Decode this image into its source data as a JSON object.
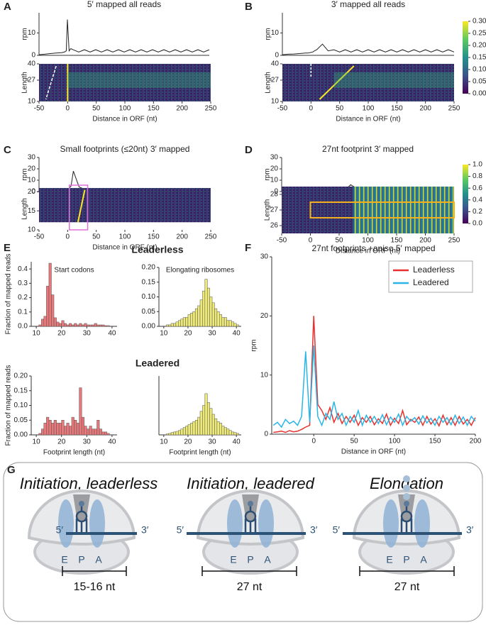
{
  "panel_labels": [
    "A",
    "B",
    "C",
    "D",
    "E",
    "F",
    "G"
  ],
  "section_titles": [
    "Leaderless",
    "Leadered"
  ],
  "chart_data": [
    {
      "type": "line",
      "title": "5′ mapped all reads",
      "ylabel": "rpm",
      "color": "#222222",
      "x": [
        -50,
        -40,
        -30,
        -20,
        -10,
        -5,
        -2,
        0,
        3,
        6,
        10,
        20,
        30,
        40,
        50,
        60,
        70,
        80,
        90,
        100,
        110,
        120,
        130,
        140,
        150,
        160,
        170,
        180,
        190,
        200,
        210,
        220,
        230,
        240,
        250
      ],
      "values": [
        0.3,
        0.5,
        0.8,
        1,
        1.2,
        1.5,
        2,
        16,
        2,
        3,
        2.5,
        1.5,
        2.5,
        1.5,
        2.5,
        1.5,
        2.5,
        1.5,
        2.5,
        1.5,
        2.5,
        1.5,
        2.5,
        1.5,
        2.5,
        1.5,
        2.5,
        1.5,
        2.5,
        1.5,
        2.5,
        1.5,
        2.5,
        1.5,
        2.5
      ],
      "xlim": [
        -50,
        250
      ],
      "ylim": [
        0,
        19
      ],
      "yticks": [
        0,
        10
      ]
    },
    {
      "type": "heatmap",
      "ylabel": "Length",
      "xlabel": "Distance in ORF (nt)",
      "xlim": [
        -50,
        250
      ],
      "xticks": [
        -50,
        0,
        50,
        100,
        150,
        200,
        250
      ],
      "ylim": [
        10,
        40
      ],
      "yticks": [
        10,
        27,
        40
      ]
    },
    {
      "type": "line",
      "title": "3′ mapped all reads",
      "ylabel": "rpm",
      "color": "#222222",
      "x": [
        -50,
        -40,
        -30,
        -20,
        -10,
        -5,
        -2,
        0,
        3,
        6,
        10,
        20,
        30,
        40,
        50,
        60,
        70,
        80,
        90,
        100,
        110,
        120,
        130,
        140,
        150,
        160,
        170,
        180,
        190,
        200,
        210,
        220,
        230,
        240,
        250
      ],
      "values": [
        0.3,
        0.5,
        0.6,
        0.8,
        1,
        1,
        1.2,
        1.3,
        1.5,
        2,
        2.5,
        5,
        2,
        2.5,
        1.5,
        2.5,
        1.5,
        2.5,
        1.5,
        2.5,
        1.5,
        2.5,
        1.5,
        2.5,
        1.5,
        2.5,
        1.5,
        2.5,
        1.5,
        2.5,
        1.5,
        2.5,
        1.5,
        2.5,
        1.5
      ],
      "xlim": [
        -50,
        250
      ],
      "ylim": [
        0,
        19
      ],
      "yticks": [
        0,
        10
      ]
    },
    {
      "type": "heatmap",
      "ylabel": "Length",
      "xlabel": "Distance in ORF (nt)",
      "xlim": [
        -50,
        250
      ],
      "xticks": [
        -50,
        0,
        50,
        100,
        150,
        200,
        250
      ],
      "ylim": [
        10,
        40
      ],
      "yticks": [
        10,
        27,
        40
      ]
    },
    {
      "type": "colorbar",
      "colors": [
        "#440154",
        "#3b528b",
        "#21918c",
        "#5ec962",
        "#fde725"
      ],
      "ylim": [
        0,
        0.3
      ],
      "yticks": [
        {
          "value": 0,
          "label": "0.00"
        },
        {
          "value": 0.05,
          "label": "0.05"
        },
        {
          "value": 0.1,
          "label": "0.10"
        },
        {
          "value": 0.15,
          "label": "0.15"
        },
        {
          "value": 0.2,
          "label": "0.20"
        },
        {
          "value": 0.25,
          "label": "0.25"
        },
        {
          "value": 0.3,
          "label": "0.30"
        }
      ]
    },
    {
      "type": "line",
      "title": "Small footprints (≤20nt) 3′ mapped",
      "ylabel": "rpm",
      "color": "#222222",
      "x": [
        -50,
        -40,
        -30,
        -20,
        -10,
        -5,
        -2,
        0,
        3,
        6,
        10,
        20,
        30,
        40,
        50,
        60,
        70,
        80,
        90,
        100,
        110,
        120,
        130,
        140,
        150,
        160,
        170,
        180,
        190,
        200,
        210,
        220,
        230,
        240,
        250
      ],
      "values": [
        1,
        1,
        1,
        1.2,
        1.5,
        1.5,
        1.5,
        2,
        3,
        5,
        18,
        4,
        2,
        1.5,
        1,
        1.5,
        1,
        1.5,
        1,
        1.5,
        1,
        1.5,
        1,
        1.5,
        1,
        1.5,
        1,
        1.5,
        1,
        1.5,
        1,
        1.5,
        1,
        1.5,
        1
      ],
      "xlim": [
        -50,
        250
      ],
      "ylim": [
        0,
        30
      ],
      "yticks": [
        0,
        10,
        20,
        30
      ]
    },
    {
      "type": "heatmap",
      "ylabel": "Length",
      "xlabel": "Distance in ORF (nt)",
      "xlim": [
        -50,
        250
      ],
      "xticks": [
        -50,
        0,
        50,
        100,
        150,
        200,
        250
      ],
      "ylim": [
        10,
        21
      ],
      "yticks": [
        10,
        15,
        20
      ]
    },
    {
      "type": "line",
      "title": "27nt footprint 3′ mapped",
      "ylabel": "rpm",
      "color": "#222222",
      "x": [
        -50,
        -40,
        -30,
        -20,
        -10,
        -5,
        -2,
        0,
        3,
        6,
        10,
        20,
        30,
        40,
        50,
        60,
        70,
        80,
        90,
        100,
        110,
        120,
        130,
        140,
        150,
        160,
        170,
        180,
        190,
        200,
        210,
        220,
        230,
        240,
        250
      ],
      "values": [
        0.3,
        0.3,
        0.3,
        0.3,
        0.3,
        0.3,
        0.3,
        0.3,
        0.5,
        0.8,
        1,
        1,
        1,
        1,
        1,
        1.2,
        6,
        3,
        2,
        1,
        2,
        1,
        2,
        1,
        2,
        1,
        2,
        1,
        2,
        1,
        2,
        1,
        2,
        1,
        2
      ],
      "xlim": [
        -50,
        250
      ],
      "ylim": [
        0,
        30
      ],
      "yticks": [
        0,
        10,
        20,
        30
      ]
    },
    {
      "type": "heatmap",
      "ylabel": "Length",
      "xlabel": "Distance in ORF (nt)",
      "xlim": [
        -50,
        250
      ],
      "xticks": [
        -50,
        0,
        50,
        100,
        150,
        200,
        250
      ],
      "ylim": [
        25.5,
        28.5
      ],
      "yticks": [
        26,
        27,
        28
      ]
    },
    {
      "type": "colorbar",
      "colors": [
        "#440154",
        "#3b528b",
        "#21918c",
        "#5ec962",
        "#fde725"
      ],
      "ylim": [
        0,
        1
      ],
      "yticks": [
        {
          "value": 0,
          "label": "0.0"
        },
        0.2,
        0.4,
        0.6,
        0.8,
        {
          "value": 1,
          "label": "1.0"
        }
      ]
    },
    {
      "type": "histogram",
      "title": "Start codons",
      "ylabel": "Fraction of mapped reads",
      "color": "#e8787a",
      "bins": [
        10,
        11,
        12,
        13,
        14,
        15,
        16,
        17,
        18,
        19,
        20,
        21,
        22,
        23,
        24,
        25,
        26,
        27,
        28,
        29,
        30,
        31,
        32,
        33,
        34,
        35,
        36,
        37,
        38,
        39,
        40,
        41
      ],
      "values": [
        0,
        0.01,
        0.05,
        0.07,
        0.28,
        0.44,
        0.22,
        0.06,
        0.03,
        0.02,
        0.04,
        0.02,
        0.01,
        0.02,
        0.01,
        0.02,
        0.01,
        0.02,
        0.01,
        0.02,
        0.01,
        0.01,
        0.01,
        0.02,
        0.01,
        0.01,
        0.01,
        0.005,
        0.005,
        0,
        0
      ],
      "xlim": [
        8,
        42
      ],
      "xticks": [
        10,
        20,
        30,
        40
      ],
      "ylim": [
        0,
        0.45
      ],
      "yticks": [
        {
          "value": 0,
          "label": "0.0"
        },
        0.1,
        0.2,
        0.3,
        0.4
      ]
    },
    {
      "type": "histogram",
      "title": "Elongating ribosomes",
      "color": "#eeea78",
      "bins": [
        10,
        11,
        12,
        13,
        14,
        15,
        16,
        17,
        18,
        19,
        20,
        21,
        22,
        23,
        24,
        25,
        26,
        27,
        28,
        29,
        30,
        31,
        32,
        33,
        34,
        35,
        36,
        37,
        38,
        39,
        40,
        41
      ],
      "values": [
        0,
        0.005,
        0.005,
        0.01,
        0.01,
        0.015,
        0.02,
        0.025,
        0.03,
        0.03,
        0.04,
        0.045,
        0.05,
        0.06,
        0.07,
        0.09,
        0.12,
        0.16,
        0.13,
        0.1,
        0.08,
        0.06,
        0.05,
        0.04,
        0.03,
        0.03,
        0.02,
        0.02,
        0.015,
        0.01,
        0.005
      ],
      "xlim": [
        8,
        42
      ],
      "xticks": [
        10,
        20,
        30,
        40
      ],
      "ylim": [
        0,
        0.2
      ],
      "yticks": [
        {
          "value": 0,
          "label": "0.00"
        },
        {
          "value": 0.05,
          "label": "0.05"
        },
        {
          "value": 0.1,
          "label": "0.10"
        },
        {
          "value": 0.15,
          "label": "0.15"
        },
        {
          "value": 0.2,
          "label": "0.20"
        }
      ]
    },
    {
      "type": "histogram",
      "ylabel": "Fraction of mapped reads",
      "xlabel": "Footprint length (nt)",
      "color": "#e8787a",
      "bins": [
        10,
        11,
        12,
        13,
        14,
        15,
        16,
        17,
        18,
        19,
        20,
        21,
        22,
        23,
        24,
        25,
        26,
        27,
        28,
        29,
        30,
        31,
        32,
        33,
        34,
        35,
        36,
        37,
        38,
        39,
        40,
        41
      ],
      "values": [
        0,
        0.005,
        0.02,
        0.04,
        0.06,
        0.05,
        0.04,
        0.05,
        0.04,
        0.04,
        0.05,
        0.03,
        0.04,
        0.03,
        0.06,
        0.05,
        0.04,
        0.16,
        0.06,
        0.03,
        0.02,
        0.03,
        0.02,
        0.02,
        0.05,
        0.02,
        0.01,
        0.01,
        0.005,
        0,
        0
      ],
      "xlim": [
        8,
        42
      ],
      "xticks": [
        10,
        20,
        30,
        40
      ],
      "ylim": [
        0,
        0.2
      ],
      "yticks": [
        {
          "value": 0,
          "label": "0.00"
        },
        {
          "value": 0.05,
          "label": "0.05"
        },
        {
          "value": 0.1,
          "label": "0.10"
        },
        {
          "value": 0.15,
          "label": "0.15"
        },
        {
          "value": 0.2,
          "label": "0.20"
        }
      ]
    },
    {
      "type": "histogram",
      "xlabel": "Footprint length (nt)",
      "color": "#eeea78",
      "bins": [
        10,
        11,
        12,
        13,
        14,
        15,
        16,
        17,
        18,
        19,
        20,
        21,
        22,
        23,
        24,
        25,
        26,
        27,
        28,
        29,
        30,
        31,
        32,
        33,
        34,
        35,
        36,
        37,
        38,
        39,
        40,
        41
      ],
      "values": [
        0,
        0.003,
        0.005,
        0.008,
        0.01,
        0.012,
        0.015,
        0.02,
        0.025,
        0.03,
        0.035,
        0.04,
        0.045,
        0.05,
        0.06,
        0.08,
        0.1,
        0.14,
        0.11,
        0.09,
        0.07,
        0.055,
        0.045,
        0.04,
        0.03,
        0.025,
        0.02,
        0.015,
        0.01,
        0.008,
        0.005
      ],
      "xlim": [
        8,
        42
      ],
      "xticks": [
        10,
        20,
        30,
        40
      ],
      "ylim": [
        0,
        0.2
      ]
    },
    {
      "type": "line",
      "title": "27nt footprints +aniso 5′ mapped",
      "ylabel": "rpm",
      "xlabel": "Distance in ORF (nt)",
      "legend": "upper right",
      "x": [
        -50,
        -45,
        -40,
        -35,
        -30,
        -25,
        -20,
        -15,
        -10,
        -5,
        0,
        5,
        10,
        15,
        20,
        25,
        30,
        35,
        40,
        45,
        50,
        55,
        60,
        65,
        70,
        75,
        80,
        85,
        90,
        95,
        100,
        105,
        110,
        115,
        120,
        125,
        130,
        135,
        140,
        145,
        150,
        155,
        160,
        165,
        170,
        175,
        180,
        185,
        190,
        195,
        200
      ],
      "series": [
        {
          "name": "Leaderless",
          "color": "#e8312f",
          "values": [
            0.3,
            0.4,
            0.5,
            0.3,
            0.6,
            0.4,
            0.5,
            0.8,
            1.2,
            1.5,
            20,
            5,
            4,
            2.5,
            4.5,
            2,
            3.5,
            1.8,
            3,
            2,
            3.2,
            1.5,
            2.8,
            2,
            3,
            1.6,
            2.6,
            1.8,
            3.4,
            1.5,
            2.7,
            1.8,
            4,
            1.6,
            2.5,
            2,
            2.9,
            1.5,
            3,
            1.7,
            2.6,
            1.4,
            3.2,
            1.6,
            2.8,
            1.5,
            3,
            1.7,
            2.5,
            1.5,
            2.8
          ]
        },
        {
          "name": "Leadered",
          "color": "#29b6e6",
          "values": [
            1.5,
            2,
            1.2,
            2.5,
            1.8,
            2.2,
            1.5,
            3,
            14,
            2,
            15,
            3,
            1.5,
            3.5,
            2.5,
            5.5,
            2.5,
            3.5,
            1.5,
            3,
            2,
            4,
            1.5,
            3.2,
            2,
            3,
            1.8,
            3.3,
            1.6,
            2.9,
            2,
            3.4,
            1.5,
            3,
            2.2,
            2.8,
            1.7,
            3.1,
            1.9,
            2.7,
            1.5,
            3,
            2,
            2.8,
            1.6,
            3.2,
            1.8,
            2.9,
            1.5,
            3,
            2.2
          ]
        }
      ],
      "xlim": [
        -52,
        200
      ],
      "xticks": [
        0,
        50,
        100,
        150,
        200
      ],
      "ylim": [
        0,
        30
      ],
      "yticks": [
        0,
        10,
        20,
        30
      ]
    }
  ],
  "diagram": {
    "panels": [
      {
        "title": "Initiation, leaderless",
        "five": "5′",
        "three": "3′",
        "sites": [
          "E",
          "P",
          "A"
        ],
        "span": "15-16 nt"
      },
      {
        "title": "Initiation, leadered",
        "five": "5′",
        "three": "3′",
        "sites": [
          "E",
          "P",
          "A"
        ],
        "span": "27 nt"
      },
      {
        "title": "Elongation",
        "five": "5′",
        "three": "3′",
        "sites": [
          "E",
          "P",
          "A"
        ],
        "span": "27 nt"
      }
    ]
  }
}
